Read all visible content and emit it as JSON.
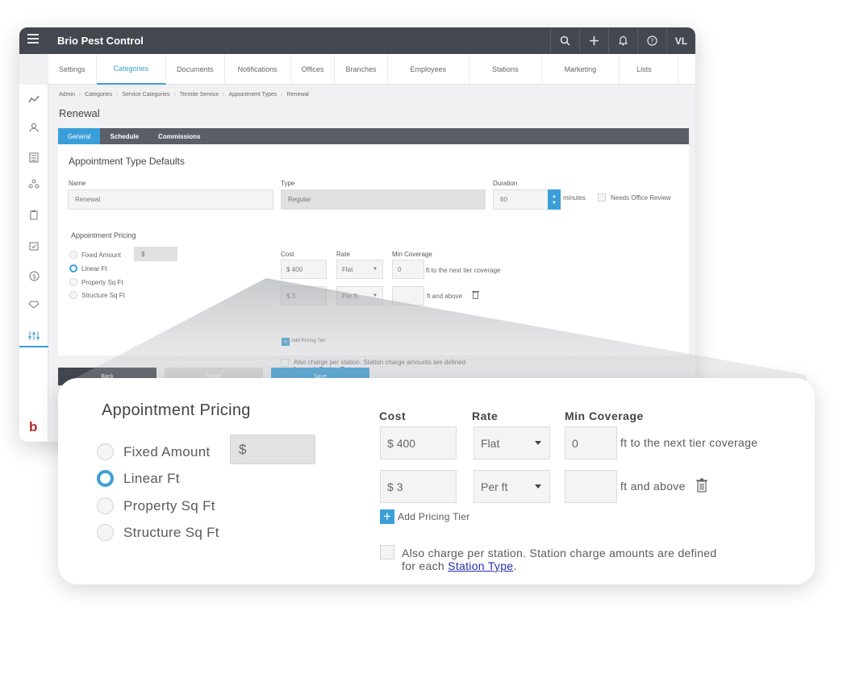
{
  "app": {
    "brand": "Brio Pest Control",
    "user_initials": "VL",
    "logo_letter": "b"
  },
  "icons": {
    "menu": "menu-icon",
    "search": "search-icon",
    "add": "plus-icon",
    "bell": "bell-icon",
    "help": "help-icon"
  },
  "tabs": [
    {
      "label": "Settings"
    },
    {
      "label": "Categories"
    },
    {
      "label": "Documents"
    },
    {
      "label": "Notifications"
    },
    {
      "label": "Offices"
    },
    {
      "label": "Branches"
    },
    {
      "label": "Employees"
    },
    {
      "label": "Stations"
    },
    {
      "label": "Marketing"
    },
    {
      "label": "Lists"
    }
  ],
  "sidebar_icons": [
    "chart-icon",
    "user-icon",
    "list-icon",
    "org-icon",
    "clipboard-icon",
    "calendar-icon",
    "dollar-icon",
    "gem-icon",
    "sliders-icon"
  ],
  "breadcrumb": [
    "Admin",
    "Categories",
    "Service Categories",
    "Termite Service",
    "Appointment Types",
    "Renewal"
  ],
  "page_title": "Renewal",
  "subtabs": [
    "General",
    "Schedule",
    "Commissions"
  ],
  "defaults": {
    "section_title": "Appointment Type Defaults",
    "name_label": "Name",
    "name_value": "Renewal",
    "type_label": "Type",
    "type_value": "Regular",
    "duration_label": "Duration",
    "duration_value": "60",
    "minutes": "minutes",
    "needs_review": "Needs Office Review"
  },
  "pricing": {
    "title": "Appointment Pricing",
    "options": [
      "Fixed Amount",
      "Linear Ft",
      "Property Sq Ft",
      "Structure Sq Ft"
    ],
    "selected": "Linear Ft",
    "dollar": "$",
    "cost_label": "Cost",
    "rate_label": "Rate",
    "min_cov_label": "Min Coverage",
    "tiers": [
      {
        "cost": "400",
        "rate": "Flat",
        "min": "0",
        "suffix": "ft  to the next tier coverage"
      },
      {
        "cost": "3",
        "rate": "Per ft",
        "min": "",
        "suffix": "ft  and above"
      }
    ],
    "add_tier": "Add Pricing Tier",
    "station_text_1": "Also charge per station. Station charge amounts are defined",
    "station_text_2": "for each",
    "station_link": "Station Type",
    "station_end": "."
  },
  "buttons": {
    "back": "Back",
    "reset": "Reset",
    "save": "Save"
  },
  "colors": {
    "accent": "#3a9fd8",
    "topbar": "#43474f",
    "brand_red": "#b22a2a"
  }
}
